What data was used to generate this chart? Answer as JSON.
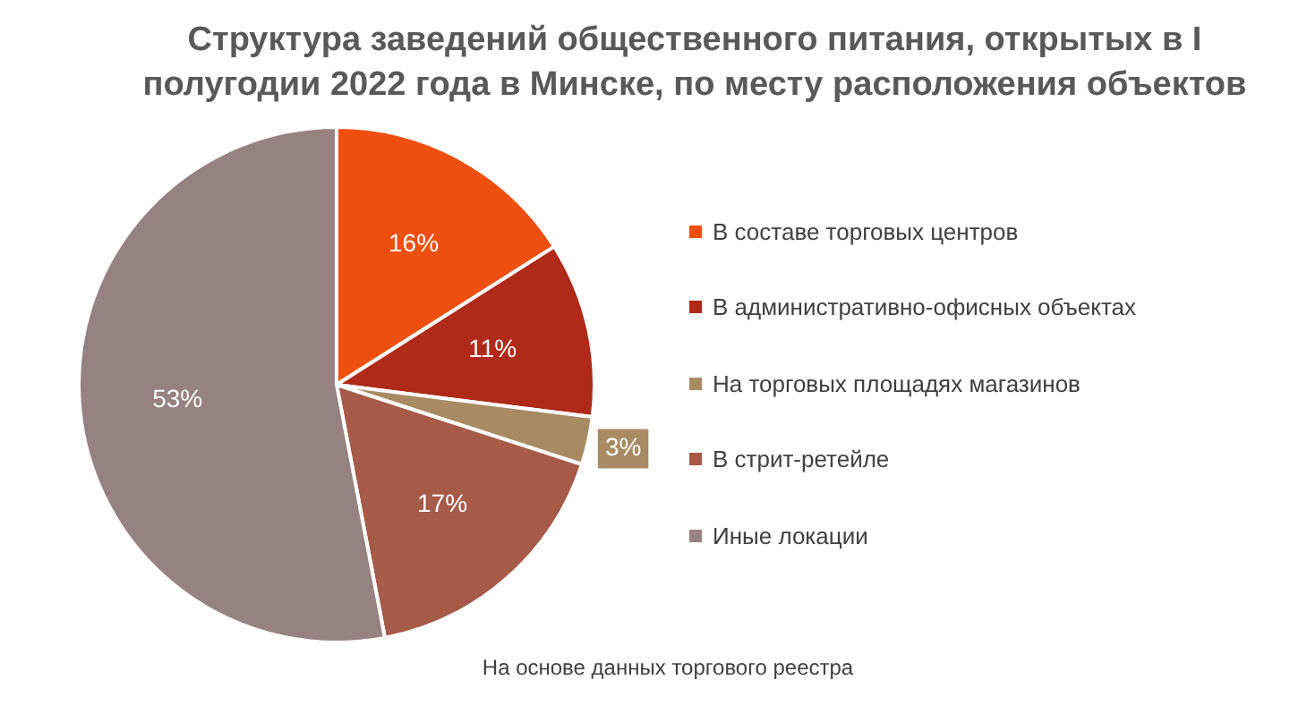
{
  "chart_data": {
    "type": "pie",
    "title": "Структура заведений общественного питания, открытых в I полугодии 2022 года в Минске, по месту расположения объектов",
    "categories": [
      "В составе торговых центров",
      "В административно-офисных объектах",
      "На торговых площадях магазинов",
      "В стрит-ретейле",
      "Иные локации"
    ],
    "values": [
      16,
      11,
      3,
      17,
      53
    ],
    "colors": [
      "#f0500f",
      "#b02a19",
      "#a88b62",
      "#a65a48",
      "#968280"
    ],
    "value_labels": [
      "16%",
      "11%",
      "3%",
      "17%",
      "53%"
    ],
    "legend": "right",
    "annotations": [
      "На основе данных торгового реестра"
    ]
  }
}
